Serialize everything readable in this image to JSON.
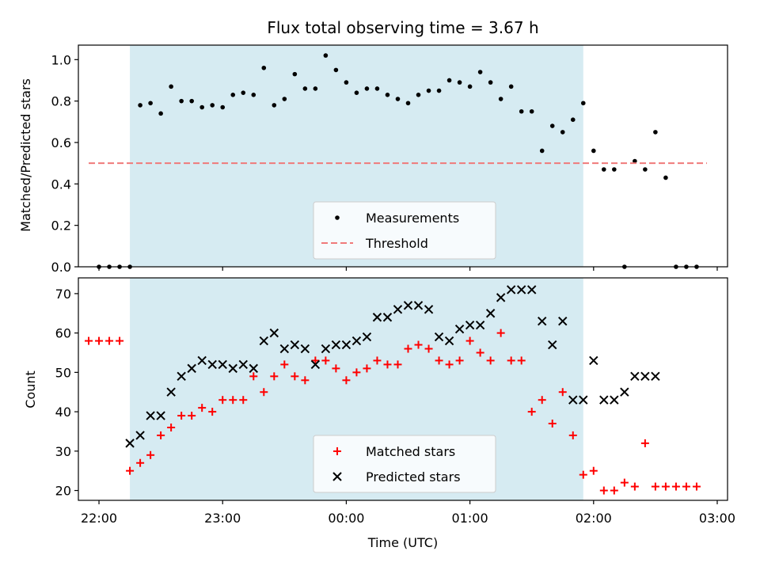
{
  "chart_data": [
    {
      "type": "scatter",
      "title": "Flux total observing time = 3.67 h",
      "ylabel": "Matched/Predicted stars",
      "xlim": [
        "21:50",
        "03:05"
      ],
      "ylim": [
        0,
        1.07
      ],
      "yticks": [
        "0.0",
        "0.2",
        "0.4",
        "0.6",
        "0.8",
        "1.0"
      ],
      "observing_window": [
        "22:15",
        "01:55"
      ],
      "grid": false,
      "legend_position": "bottom-center",
      "series": [
        {
          "name": "Measurements",
          "marker": "dot",
          "color": "#000000",
          "x": [
            "22:00",
            "22:05",
            "22:10",
            "22:15",
            "22:20",
            "22:25",
            "22:30",
            "22:35",
            "22:40",
            "22:45",
            "22:50",
            "22:55",
            "23:00",
            "23:05",
            "23:10",
            "23:15",
            "23:20",
            "23:25",
            "23:30",
            "23:35",
            "23:40",
            "23:45",
            "23:50",
            "23:55",
            "00:00",
            "00:05",
            "00:10",
            "00:15",
            "00:20",
            "00:25",
            "00:30",
            "00:35",
            "00:40",
            "00:45",
            "00:50",
            "00:55",
            "01:00",
            "01:05",
            "01:10",
            "01:15",
            "01:20",
            "01:25",
            "01:30",
            "01:35",
            "01:40",
            "01:45",
            "01:50",
            "01:55",
            "02:00",
            "02:05",
            "02:10",
            "02:15",
            "02:20",
            "02:25",
            "02:30",
            "02:35",
            "02:40",
            "02:45",
            "02:50"
          ],
          "y": [
            0.0,
            0.0,
            0.0,
            0.0,
            0.78,
            0.79,
            0.74,
            0.87,
            0.8,
            0.8,
            0.77,
            0.78,
            0.77,
            0.83,
            0.84,
            0.83,
            0.96,
            0.78,
            0.81,
            0.93,
            0.86,
            0.86,
            1.02,
            0.95,
            0.89,
            0.84,
            0.86,
            0.86,
            0.83,
            0.81,
            0.79,
            0.83,
            0.85,
            0.85,
            0.9,
            0.89,
            0.87,
            0.94,
            0.89,
            0.81,
            0.87,
            0.75,
            0.75,
            0.56,
            0.68,
            0.65,
            0.71,
            0.79,
            0.56,
            0.47,
            0.47,
            0.0,
            0.51,
            0.47,
            0.65,
            0.43,
            0.0,
            0.0,
            0.0
          ]
        },
        {
          "name": "Threshold",
          "type": "line",
          "style": "dashed",
          "color": "#f07a7a",
          "x": [
            "21:55",
            "02:55"
          ],
          "y": [
            0.5,
            0.5
          ]
        }
      ]
    },
    {
      "type": "scatter",
      "xlabel": "Time (UTC)",
      "ylabel": "Count",
      "xlim": [
        "21:50",
        "03:05"
      ],
      "ylim": [
        17.5,
        74
      ],
      "xticks": [
        "22:00",
        "23:00",
        "00:00",
        "01:00",
        "02:00",
        "03:00"
      ],
      "yticks": [
        "20",
        "30",
        "40",
        "50",
        "60",
        "70"
      ],
      "observing_window": [
        "22:15",
        "01:55"
      ],
      "grid": false,
      "legend_position": "bottom-center",
      "series": [
        {
          "name": "Matched stars",
          "marker": "plus",
          "color": "#ff0000",
          "x": [
            "21:55",
            "22:00",
            "22:05",
            "22:10",
            "22:15",
            "22:20",
            "22:25",
            "22:30",
            "22:35",
            "22:40",
            "22:45",
            "22:50",
            "22:55",
            "23:00",
            "23:05",
            "23:10",
            "23:15",
            "23:20",
            "23:25",
            "23:30",
            "23:35",
            "23:40",
            "23:45",
            "23:50",
            "23:55",
            "00:00",
            "00:05",
            "00:10",
            "00:15",
            "00:20",
            "00:25",
            "00:30",
            "00:35",
            "00:40",
            "00:45",
            "00:50",
            "00:55",
            "01:00",
            "01:05",
            "01:10",
            "01:15",
            "01:20",
            "01:25",
            "01:30",
            "01:35",
            "01:40",
            "01:45",
            "01:50",
            "01:55",
            "02:00",
            "02:05",
            "02:10",
            "02:15",
            "02:20",
            "02:25",
            "02:30",
            "02:35",
            "02:40",
            "02:45",
            "02:50"
          ],
          "y": [
            58,
            58,
            58,
            58,
            25,
            27,
            29,
            34,
            36,
            39,
            39,
            41,
            40,
            43,
            43,
            43,
            49,
            45,
            49,
            52,
            49,
            48,
            53,
            53,
            51,
            48,
            50,
            51,
            53,
            52,
            52,
            56,
            57,
            56,
            53,
            52,
            53,
            58,
            55,
            53,
            60,
            53,
            53,
            40,
            43,
            37,
            45,
            34,
            24,
            25,
            20,
            20,
            22,
            21,
            32,
            21,
            21,
            21,
            21,
            21
          ]
        },
        {
          "name": "Predicted stars",
          "marker": "x",
          "color": "#000000",
          "x": [
            "22:15",
            "22:20",
            "22:25",
            "22:30",
            "22:35",
            "22:40",
            "22:45",
            "22:50",
            "22:55",
            "23:00",
            "23:05",
            "23:10",
            "23:15",
            "23:20",
            "23:25",
            "23:30",
            "23:35",
            "23:40",
            "23:45",
            "23:50",
            "23:55",
            "00:00",
            "00:05",
            "00:10",
            "00:15",
            "00:20",
            "00:25",
            "00:30",
            "00:35",
            "00:40",
            "00:45",
            "00:50",
            "00:55",
            "01:00",
            "01:05",
            "01:10",
            "01:15",
            "01:20",
            "01:25",
            "01:30",
            "01:35",
            "01:40",
            "01:45",
            "01:50",
            "01:55",
            "02:00",
            "02:05",
            "02:10",
            "02:15",
            "02:20",
            "02:25",
            "02:30"
          ],
          "y": [
            32,
            34,
            39,
            39,
            45,
            49,
            51,
            53,
            52,
            52,
            51,
            52,
            51,
            58,
            60,
            56,
            57,
            56,
            52,
            56,
            57,
            57,
            58,
            59,
            64,
            64,
            66,
            67,
            67,
            66,
            59,
            58,
            61,
            62,
            62,
            65,
            69,
            71,
            71,
            71,
            63,
            57,
            63,
            43,
            43,
            53,
            43,
            43,
            45,
            49,
            49,
            49
          ]
        }
      ]
    }
  ]
}
